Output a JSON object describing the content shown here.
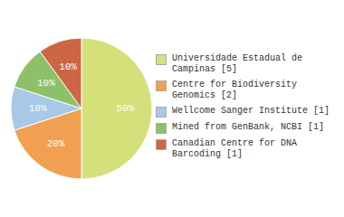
{
  "chart_data": {
    "type": "pie",
    "categories": [
      "Universidade Estadual de\nCampinas [5]",
      "Centre for Biodiversity\nGenomics [2]",
      "Wellcome Sanger Institute [1]",
      "Mined from GenBank, NCBI [1]",
      "Canadian Centre for DNA\nBarcoding [1]"
    ],
    "values": [
      50,
      20,
      10,
      10,
      10
    ],
    "value_labels": [
      "50%",
      "20%",
      "10%",
      "10%",
      "10%"
    ],
    "colors": [
      "#d4e07a",
      "#f0a050",
      "#a8c8e8",
      "#8ec06a",
      "#cc6644"
    ],
    "data_labels": true,
    "legend": "right"
  }
}
